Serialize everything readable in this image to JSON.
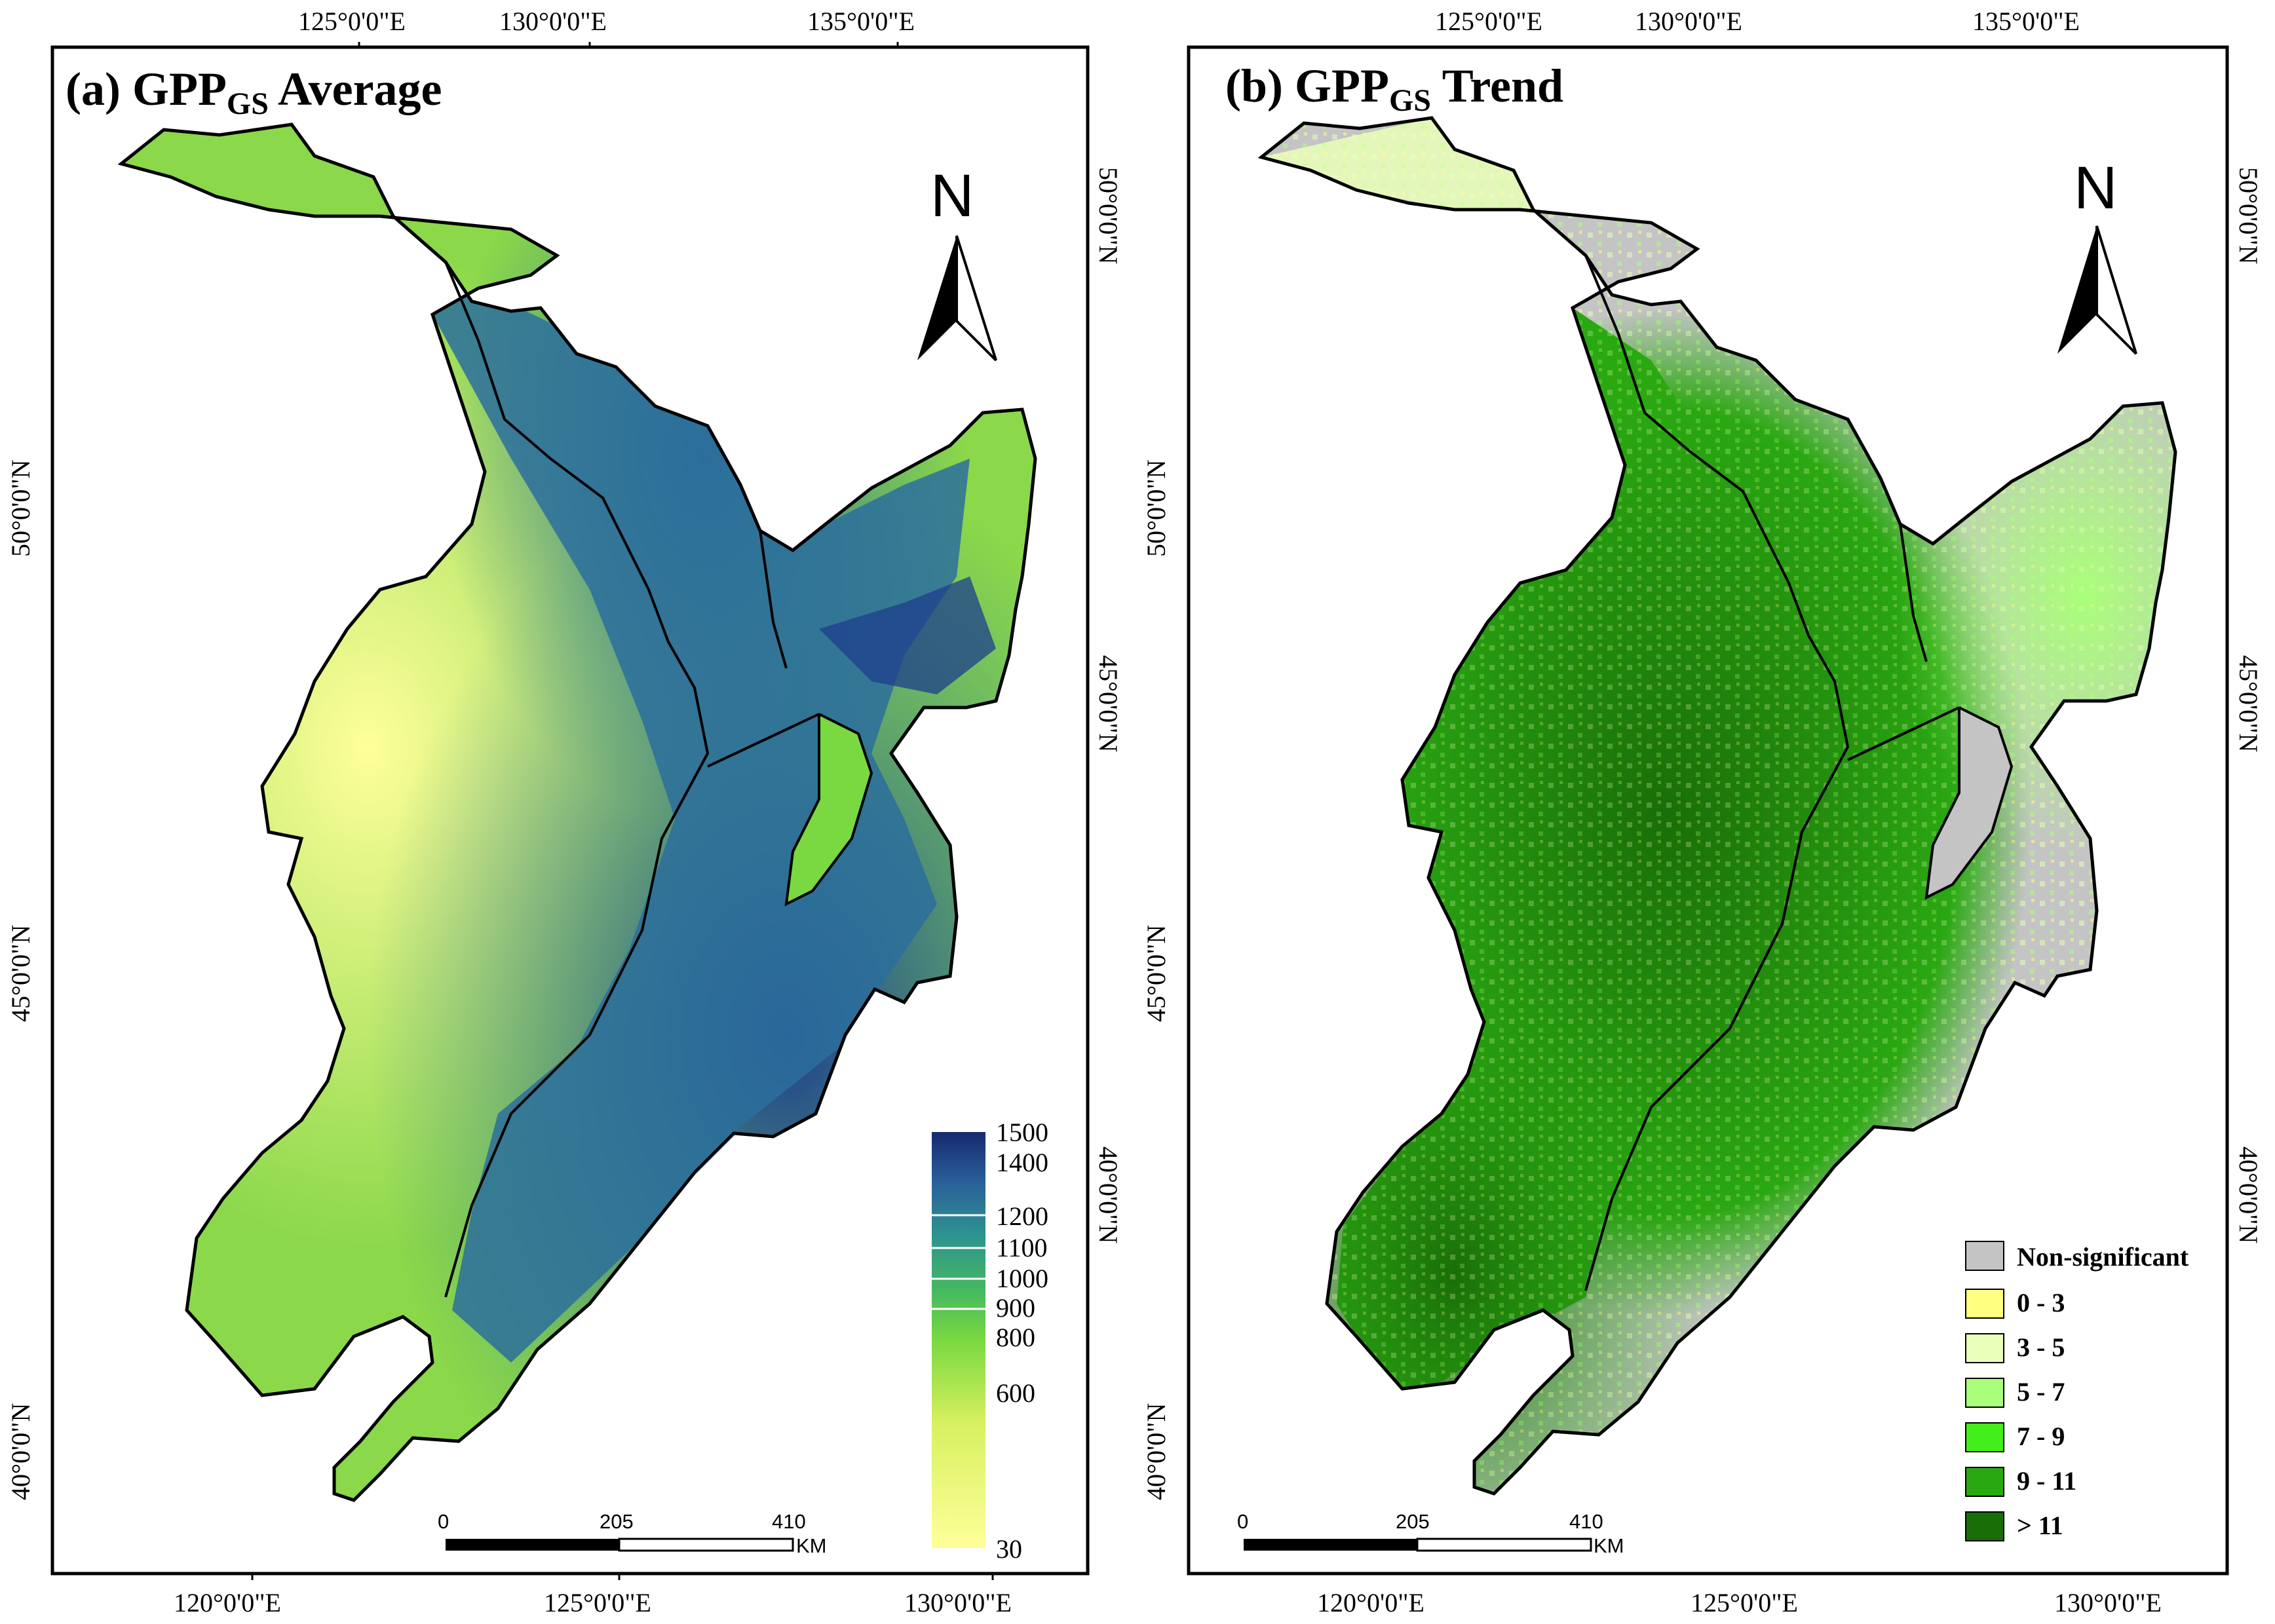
{
  "panel_a": {
    "title_main_prefix": "(a) GPP",
    "title_sub": "GS",
    "title_main_suffix": " Average",
    "top_ticks": [
      "125°0'0\"E",
      "130°0'0\"E",
      "135°0'0\"E"
    ],
    "bottom_ticks": [
      "120°0'0\"E",
      "125°0'0\"E",
      "130°0'0\"E"
    ],
    "left_ticks": [
      "50°0'0\"N",
      "45°0'0\"N",
      "40°0'0\"N"
    ],
    "right_ticks": [
      "50°0'0\"N",
      "45°0'0\"N",
      "40°0'0\"N"
    ],
    "north_label": "N",
    "scale_labels": [
      "0",
      "205",
      "410"
    ],
    "scale_unit": "KM",
    "colorbar_labels": [
      "1500",
      "1400",
      "1200",
      "1100",
      "1000",
      "900",
      "800",
      "600",
      "30"
    ],
    "colors": {
      "low": "#ffff99",
      "mid": "#5fd040",
      "high": "#132b7a"
    }
  },
  "panel_b": {
    "title_main_prefix": "(b) GPP",
    "title_sub": "GS",
    "title_main_suffix": " Trend",
    "top_ticks": [
      "125°0'0\"E",
      "130°0'0\"E",
      "135°0'0\"E"
    ],
    "bottom_ticks": [
      "120°0'0\"E",
      "125°0'0\"E",
      "130°0'0\"E"
    ],
    "left_ticks": [
      "50°0'0\"N",
      "45°0'0\"N",
      "40°0'0\"N"
    ],
    "right_ticks": [
      "50°0'0\"N",
      "45°0'0\"N",
      "40°0'0\"N"
    ],
    "north_label": "N",
    "scale_labels": [
      "0",
      "205",
      "410"
    ],
    "scale_unit": "KM",
    "legend": [
      {
        "label": "Non-significant",
        "color": "#c4c4c4"
      },
      {
        "label": "0 - 3",
        "color": "#ffff80"
      },
      {
        "label": "3 - 5",
        "color": "#eaffb9"
      },
      {
        "label": "5 - 7",
        "color": "#aaff7a"
      },
      {
        "label": "7 - 9",
        "color": "#44ee1a"
      },
      {
        "label": "9 - 11",
        "color": "#2aa812"
      },
      {
        "label": "> 11",
        "color": "#1a6e08"
      }
    ]
  }
}
